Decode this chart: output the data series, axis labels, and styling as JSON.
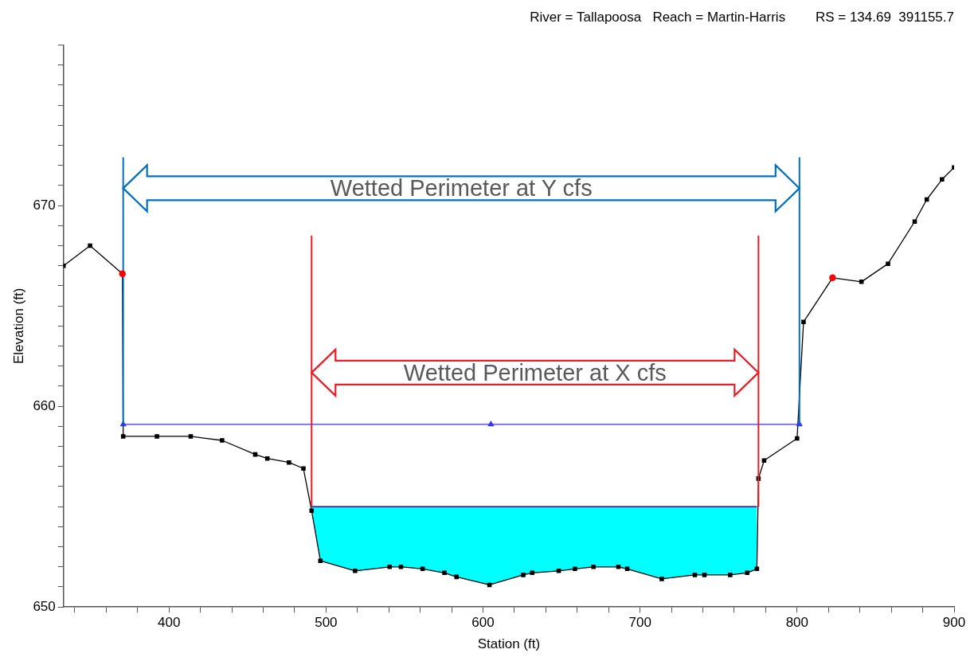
{
  "chart_data": {
    "type": "line",
    "title": "River = Tallapoosa   Reach = Martin-Harris        RS = 134.69  391155.7",
    "xlabel": "Station (ft)",
    "ylabel": "Elevation (ft)",
    "xlim": [
      332.8,
      900
    ],
    "xticks": [
      {
        "value": 340,
        "label": null
      },
      {
        "value": 360,
        "label": null
      },
      {
        "value": 380,
        "label": null
      },
      400,
      {
        "value": 420,
        "label": null
      },
      {
        "value": 440,
        "label": null
      },
      {
        "value": 460,
        "label": null
      },
      {
        "value": 480,
        "label": null
      },
      500,
      {
        "value": 520,
        "label": null
      },
      {
        "value": 540,
        "label": null
      },
      {
        "value": 560,
        "label": null
      },
      {
        "value": 580,
        "label": null
      },
      600,
      {
        "value": 620,
        "label": null
      },
      {
        "value": 640,
        "label": null
      },
      {
        "value": 660,
        "label": null
      },
      {
        "value": 680,
        "label": null
      },
      700,
      {
        "value": 720,
        "label": null
      },
      {
        "value": 740,
        "label": null
      },
      {
        "value": 760,
        "label": null
      },
      {
        "value": 780,
        "label": null
      },
      800,
      {
        "value": 820,
        "label": null
      },
      {
        "value": 840,
        "label": null
      },
      {
        "value": 860,
        "label": null
      },
      {
        "value": 880,
        "label": null
      },
      900
    ],
    "ylim": [
      650,
      678
    ],
    "yticks": [
      650,
      {
        "value": 651,
        "label": null
      },
      {
        "value": 652,
        "label": null
      },
      {
        "value": 653,
        "label": null
      },
      {
        "value": 654,
        "label": null
      },
      {
        "value": 655,
        "label": null
      },
      {
        "value": 656,
        "label": null
      },
      {
        "value": 657,
        "label": null
      },
      {
        "value": 658,
        "label": null
      },
      {
        "value": 659,
        "label": null
      },
      660,
      {
        "value": 661,
        "label": null
      },
      {
        "value": 662,
        "label": null
      },
      {
        "value": 663,
        "label": null
      },
      {
        "value": 664,
        "label": null
      },
      {
        "value": 665,
        "label": null
      },
      {
        "value": 666,
        "label": null
      },
      {
        "value": 667,
        "label": null
      },
      {
        "value": 668,
        "label": null
      },
      {
        "value": 669,
        "label": null
      },
      670,
      {
        "value": 671,
        "label": null
      },
      {
        "value": 672,
        "label": null
      },
      {
        "value": 673,
        "label": null
      },
      {
        "value": 674,
        "label": null
      },
      {
        "value": 675,
        "label": null
      },
      {
        "value": 676,
        "label": null
      },
      {
        "value": 677,
        "label": null
      },
      {
        "value": 678,
        "label": null
      }
    ],
    "grid": false,
    "legend": false,
    "series": [
      {
        "color": "#000000",
        "marker": "square",
        "x": [
          332.8,
          349.7,
          370.3,
          370.8,
          392.3,
          413.8,
          433.8,
          454.9,
          462.6,
          476.4,
          485.6,
          490.8,
          496.4,
          518.5,
          540.5,
          547.7,
          561.5,
          575.4,
          583.1,
          604.1,
          625.6,
          631.3,
          648.2,
          658.5,
          670.3,
          686.2,
          691.8,
          713.8,
          734.9,
          741.0,
          757.4,
          768.2,
          774.4,
          775.4,
          779.0,
          800.0,
          804.1,
          822.6,
          841.0,
          857.9,
          874.9,
          882.6,
          892.3,
          900
        ],
        "values": [
          667.0,
          668.0,
          666.6,
          658.5,
          658.5,
          658.5,
          658.3,
          657.6,
          657.4,
          657.2,
          656.9,
          654.8,
          652.3,
          651.8,
          652.0,
          652.0,
          651.9,
          651.7,
          651.5,
          651.1,
          651.6,
          651.7,
          651.8,
          651.9,
          652.0,
          652.0,
          651.9,
          651.4,
          651.6,
          651.6,
          651.6,
          651.7,
          651.9,
          656.4,
          657.3,
          658.4,
          664.2,
          666.4,
          666.2,
          667.1,
          669.2,
          670.3,
          671.3,
          671.9
        ]
      },
      {
        "type": "scatter",
        "color": "#ff0000",
        "marker": "circle",
        "x": [
          370.3,
          822.6
        ],
        "values": [
          666.6,
          666.4
        ]
      },
      {
        "color": "#3333ff",
        "marker": "triangle",
        "x": [
          370.8,
          605.0,
          801.5
        ],
        "values": [
          659.1,
          659.1,
          659.1
        ]
      },
      {
        "type": "area",
        "color": "#00ffff",
        "x": [
          490.8,
          496.4,
          518.5,
          540.5,
          547.7,
          561.5,
          575.4,
          583.1,
          604.1,
          625.6,
          631.3,
          648.2,
          658.5,
          670.3,
          686.2,
          691.8,
          713.8,
          734.9,
          741.0,
          757.4,
          768.2,
          774.4
        ],
        "values": [
          655.0,
          655.0,
          655.0,
          655.0,
          655.0,
          655.0,
          655.0,
          655.0,
          655.0,
          655.0,
          655.0,
          655.0,
          655.0,
          655.0,
          655.0,
          655.0,
          655.0,
          655.0,
          655.0,
          655.0,
          655.0,
          655.0
        ]
      },
      {
        "color": "#ee1c25",
        "marker": "none",
        "x": [
          490.8,
          490.8
        ],
        "values": [
          655.0,
          668.5
        ]
      },
      {
        "color": "#ee1c25",
        "marker": "none",
        "x": [
          775.4,
          775.4
        ],
        "values": [
          655.0,
          668.5
        ]
      },
      {
        "color": "#0070c0",
        "marker": "none",
        "x": [
          370.8,
          370.8
        ],
        "values": [
          659.1,
          672.4
        ]
      },
      {
        "color": "#0070c0",
        "marker": "none",
        "x": [
          801.5,
          801.5
        ],
        "values": [
          659.1,
          672.4
        ]
      }
    ],
    "annotations": [
      "Wetted Perimeter at Y cfs",
      "Wetted Perimeter at X cfs"
    ]
  }
}
